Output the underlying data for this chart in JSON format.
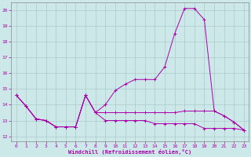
{
  "background_color": "#cce8e8",
  "line_color": "#aa00aa",
  "grid_color": "#aacccc",
  "xlabel": "Windchill (Refroidissement éolien,°C)",
  "x_ticks": [
    0,
    1,
    2,
    3,
    4,
    5,
    6,
    7,
    8,
    9,
    10,
    11,
    12,
    13,
    14,
    15,
    16,
    17,
    18,
    19,
    20,
    21,
    22,
    23
  ],
  "y_ticks": [
    12,
    13,
    14,
    15,
    16,
    17,
    18,
    19,
    20
  ],
  "xlim": [
    -0.5,
    23.5
  ],
  "ylim": [
    11.7,
    20.5
  ],
  "s1_x": [
    0,
    1,
    2,
    3,
    4,
    5,
    6,
    7,
    8,
    9,
    10,
    11,
    12,
    13,
    14,
    15,
    16,
    17,
    18,
    19,
    20,
    21,
    22,
    23
  ],
  "s1_y": [
    14.6,
    13.9,
    13.1,
    13.0,
    12.6,
    12.6,
    12.6,
    14.6,
    13.5,
    14.0,
    14.9,
    15.3,
    15.6,
    15.6,
    15.6,
    16.4,
    18.5,
    20.1,
    20.1,
    19.4,
    13.6,
    13.3,
    12.9,
    12.4
  ],
  "s2_x": [
    0,
    1,
    2,
    3,
    4,
    5,
    6,
    7,
    8,
    9,
    10,
    11,
    12,
    13,
    14,
    15,
    16,
    17,
    18,
    19,
    20,
    21,
    22,
    23
  ],
  "s2_y": [
    14.6,
    13.9,
    13.1,
    13.0,
    12.6,
    12.6,
    12.6,
    14.6,
    13.5,
    13.5,
    13.5,
    13.5,
    13.5,
    13.5,
    13.5,
    13.5,
    13.5,
    13.6,
    13.6,
    13.6,
    13.6,
    13.3,
    12.9,
    12.4
  ],
  "s3_x": [
    0,
    1,
    2,
    3,
    4,
    5,
    6,
    7,
    8,
    9,
    10,
    11,
    12,
    13,
    14,
    15,
    16,
    17,
    18,
    19,
    20,
    21,
    22,
    23
  ],
  "s3_y": [
    14.6,
    13.9,
    13.1,
    13.0,
    12.6,
    12.6,
    12.6,
    14.6,
    13.5,
    13.0,
    13.0,
    13.0,
    13.0,
    13.0,
    12.8,
    12.8,
    12.8,
    12.8,
    12.8,
    12.5,
    12.5,
    12.5,
    12.5,
    12.4
  ]
}
